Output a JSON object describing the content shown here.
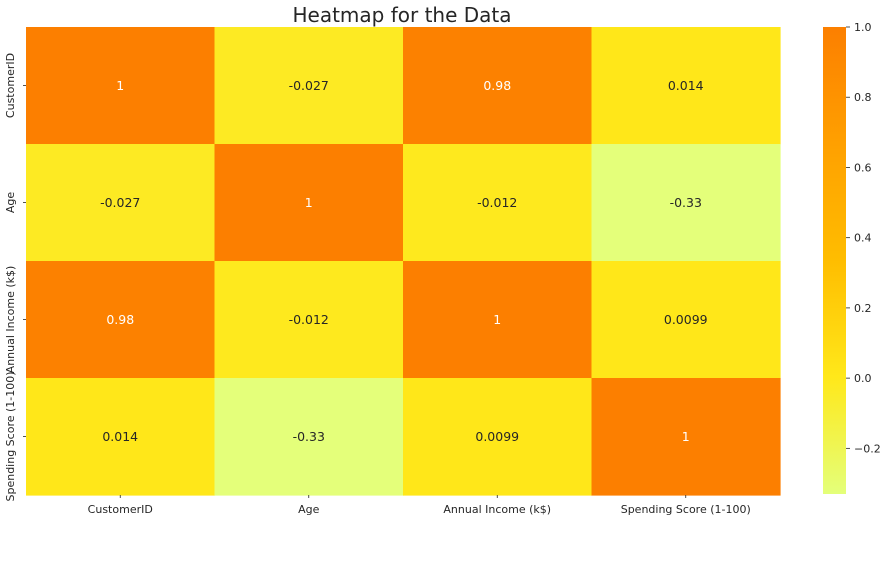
{
  "chart_data": {
    "type": "heatmap",
    "title": "Heatmap for the Data",
    "row_labels": [
      "CustomerID",
      "Age",
      "Annual Income (k$)",
      "Spending Score (1-100)"
    ],
    "col_labels": [
      "CustomerID",
      "Age",
      "Annual Income (k$)",
      "Spending Score (1-100)"
    ],
    "values": [
      [
        1,
        -0.027,
        0.98,
        0.014
      ],
      [
        -0.027,
        1,
        -0.012,
        -0.33
      ],
      [
        0.98,
        -0.012,
        1,
        0.0099
      ],
      [
        0.014,
        -0.33,
        0.0099,
        1
      ]
    ],
    "annotations": [
      [
        "1",
        "-0.027",
        "0.98",
        "0.014"
      ],
      [
        "-0.027",
        "1",
        "-0.012",
        "-0.33"
      ],
      [
        "0.98",
        "-0.012",
        "1",
        "0.0099"
      ],
      [
        "0.014",
        "-0.33",
        "0.0099",
        "1"
      ]
    ],
    "colorbar": {
      "min": -0.33,
      "max": 1.0,
      "ticks": [
        -0.2,
        0.0,
        0.2,
        0.4,
        0.6,
        0.8,
        1.0
      ],
      "tick_labels": [
        "−0.2",
        "0.0",
        "0.2",
        "0.4",
        "0.6",
        "0.8",
        "1.0"
      ],
      "colormap": "Wistia",
      "stops": [
        "#e4ff7a",
        "#ffe81a",
        "#ffbd00",
        "#ffa000",
        "#fc7f00"
      ]
    },
    "annotation_colors": {
      "dark": "#262626",
      "light": "#ffffff"
    }
  }
}
